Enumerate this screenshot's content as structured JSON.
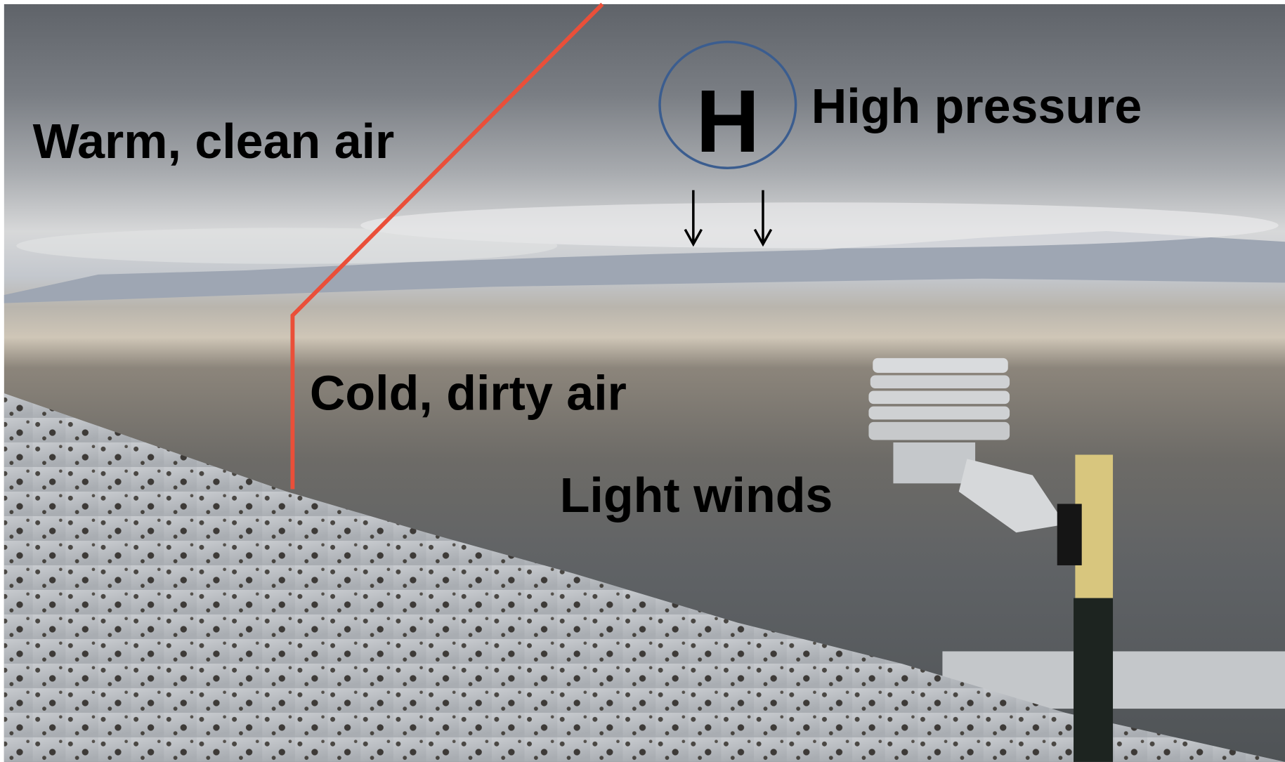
{
  "annotations": {
    "warm_air": "Warm, clean air",
    "high_symbol": "H",
    "high_pressure": "High pressure",
    "cold_air": "Cold, dirty air",
    "light_winds": "Light winds"
  }
}
